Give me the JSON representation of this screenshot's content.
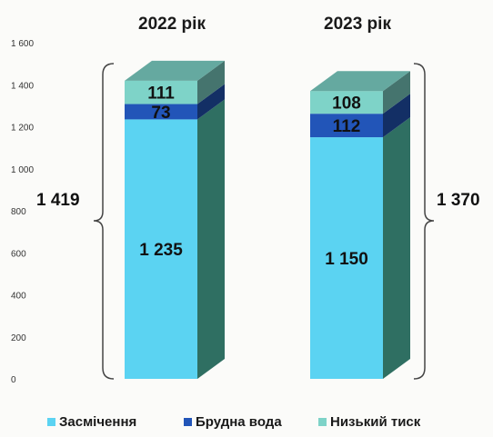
{
  "chart_data": {
    "type": "bar",
    "stacked": true,
    "categories": [
      "2022 рік",
      "2023 рік"
    ],
    "series": [
      {
        "name": "Засмічення",
        "values": [
          1235,
          1150
        ],
        "color": "#5bd3f2"
      },
      {
        "name": "Брудна вода",
        "values": [
          73,
          112
        ],
        "color": "#2255b8"
      },
      {
        "name": "Низький тиск",
        "values": [
          111,
          108
        ],
        "color": "#7ed3c8"
      }
    ],
    "totals": [
      "1 419",
      "1 370"
    ],
    "segment_labels": [
      [
        "1 235",
        "73",
        "111"
      ],
      [
        "1 150",
        "112",
        "108"
      ]
    ],
    "yticks": [
      0,
      200,
      400,
      600,
      800,
      1000,
      1200,
      1400,
      1600
    ],
    "ytick_labels": [
      "0",
      "200",
      "400",
      "600",
      "800",
      "1 000",
      "1 200",
      "1 400",
      "1 600"
    ],
    "ylim": [
      0,
      1600
    ],
    "legend_position": "bottom",
    "grid": false
  }
}
